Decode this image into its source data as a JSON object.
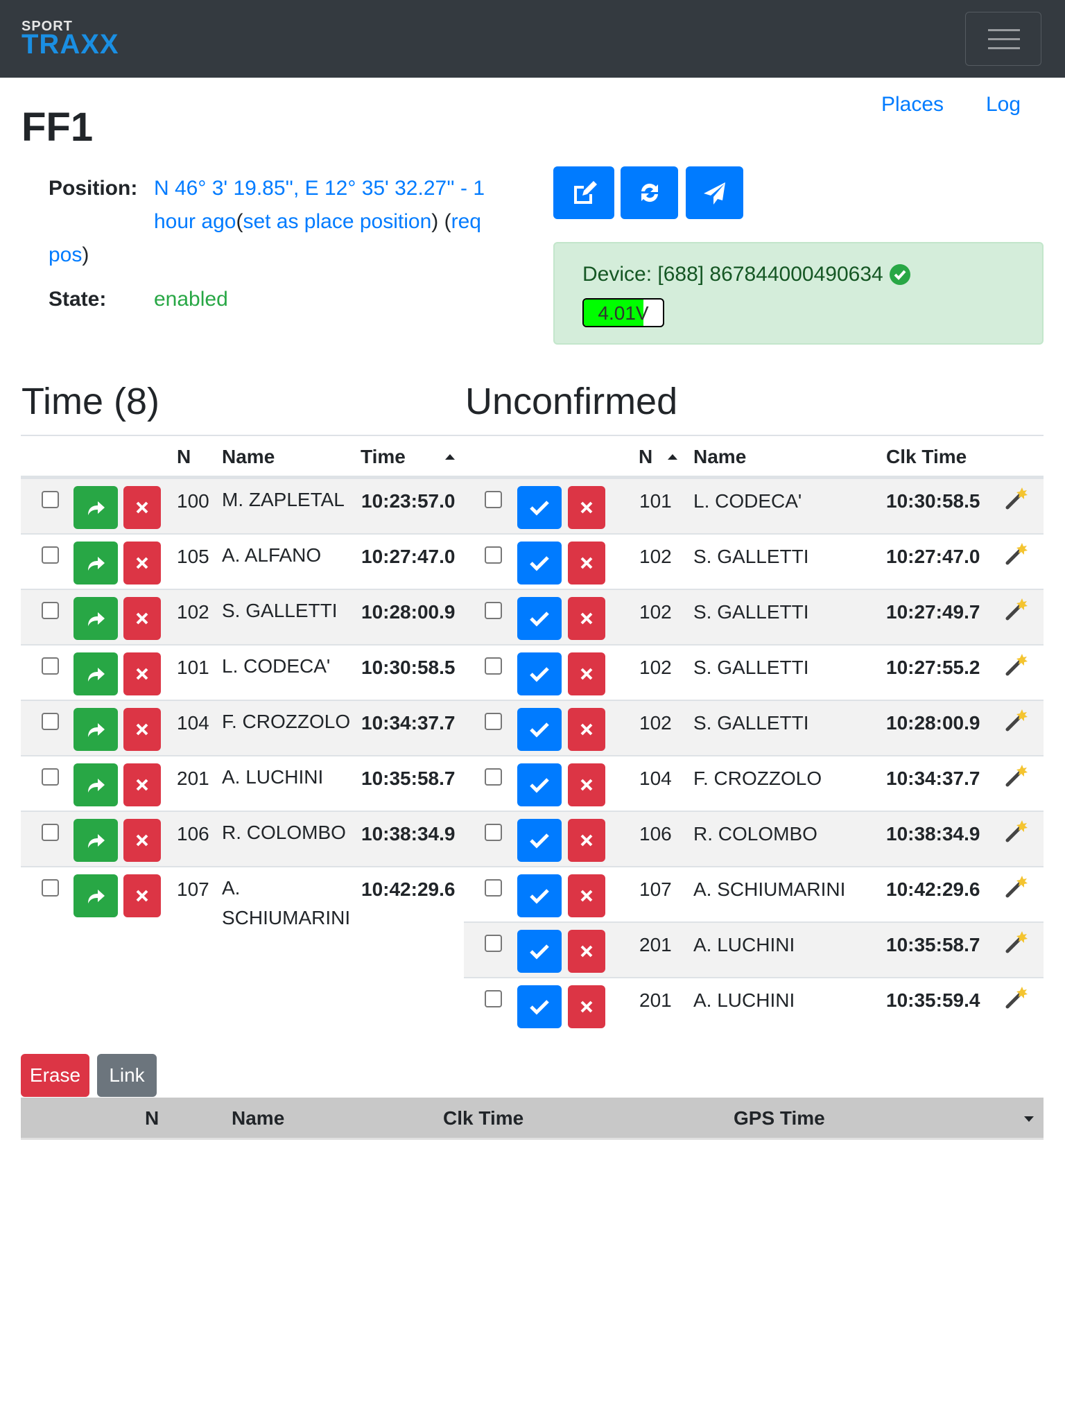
{
  "navbar": {
    "logo_top": "SPORT",
    "logo_bottom": "TRAXX",
    "menu_icon": "hamburger-icon"
  },
  "links": {
    "places": "Places",
    "log": "Log"
  },
  "title": "FF1",
  "position": {
    "label": "Position:",
    "coords": "N 46° 3' 19.85'', E 12° 35' 32.27'' - 1",
    "coords2": "hour ago",
    "set_place": "set as place position",
    "req_pos_a": "req",
    "req_pos_b": "pos"
  },
  "state": {
    "label": "State:",
    "value": "enabled"
  },
  "actions": {
    "edit_icon": "edit-icon",
    "refresh_icon": "refresh-icon",
    "send_icon": "paper-plane-icon"
  },
  "device": {
    "text": "Device: [688] 867844000490634",
    "voltage": "4.01V",
    "battery_level_percent": 75
  },
  "colors": {
    "primary": "#007bff",
    "success": "#28a745",
    "danger": "#dc3545",
    "secondary": "#6c757d",
    "navbar": "#343a40"
  },
  "time_table": {
    "heading": "Time (8)",
    "columns": {
      "n": "N",
      "name": "Name",
      "time": "Time"
    },
    "rows": [
      {
        "n": "100",
        "name": "M. ZAPLETAL",
        "time": "10:23:57.0"
      },
      {
        "n": "105",
        "name": "A. ALFANO",
        "time": "10:27:47.0"
      },
      {
        "n": "102",
        "name": "S. GALLETTI",
        "time": "10:28:00.9"
      },
      {
        "n": "101",
        "name": "L. CODECA'",
        "time": "10:30:58.5"
      },
      {
        "n": "104",
        "name": "F. CROZZOLO",
        "time": "10:34:37.7"
      },
      {
        "n": "201",
        "name": "A. LUCHINI",
        "time": "10:35:58.7"
      },
      {
        "n": "106",
        "name": "R. COLOMBO",
        "time": "10:38:34.9"
      },
      {
        "n": "107",
        "name": "A. SCHIUMARINI",
        "time": "10:42:29.6"
      }
    ]
  },
  "unconfirmed_table": {
    "heading": "Unconfirmed",
    "columns": {
      "n": "N",
      "name": "Name",
      "clk_time": "Clk Time"
    },
    "rows": [
      {
        "n": "101",
        "name": "L. CODECA'",
        "time": "10:30:58.5"
      },
      {
        "n": "102",
        "name": "S. GALLETTI",
        "time": "10:27:47.0"
      },
      {
        "n": "102",
        "name": "S. GALLETTI",
        "time": "10:27:49.7"
      },
      {
        "n": "102",
        "name": "S. GALLETTI",
        "time": "10:27:55.2"
      },
      {
        "n": "102",
        "name": "S. GALLETTI",
        "time": "10:28:00.9"
      },
      {
        "n": "104",
        "name": "F. CROZZOLO",
        "time": "10:34:37.7"
      },
      {
        "n": "106",
        "name": "R. COLOMBO",
        "time": "10:38:34.9"
      },
      {
        "n": "107",
        "name": "A. SCHIUMARINI",
        "time": "10:42:29.6"
      },
      {
        "n": "201",
        "name": "A. LUCHINI",
        "time": "10:35:58.7"
      },
      {
        "n": "201",
        "name": "A. LUCHINI",
        "time": "10:35:59.4"
      }
    ]
  },
  "bottom": {
    "erase": "Erase",
    "link": "Link",
    "columns": {
      "n": "N",
      "name": "Name",
      "clk_time": "Clk Time",
      "gps_time": "GPS Time"
    }
  }
}
